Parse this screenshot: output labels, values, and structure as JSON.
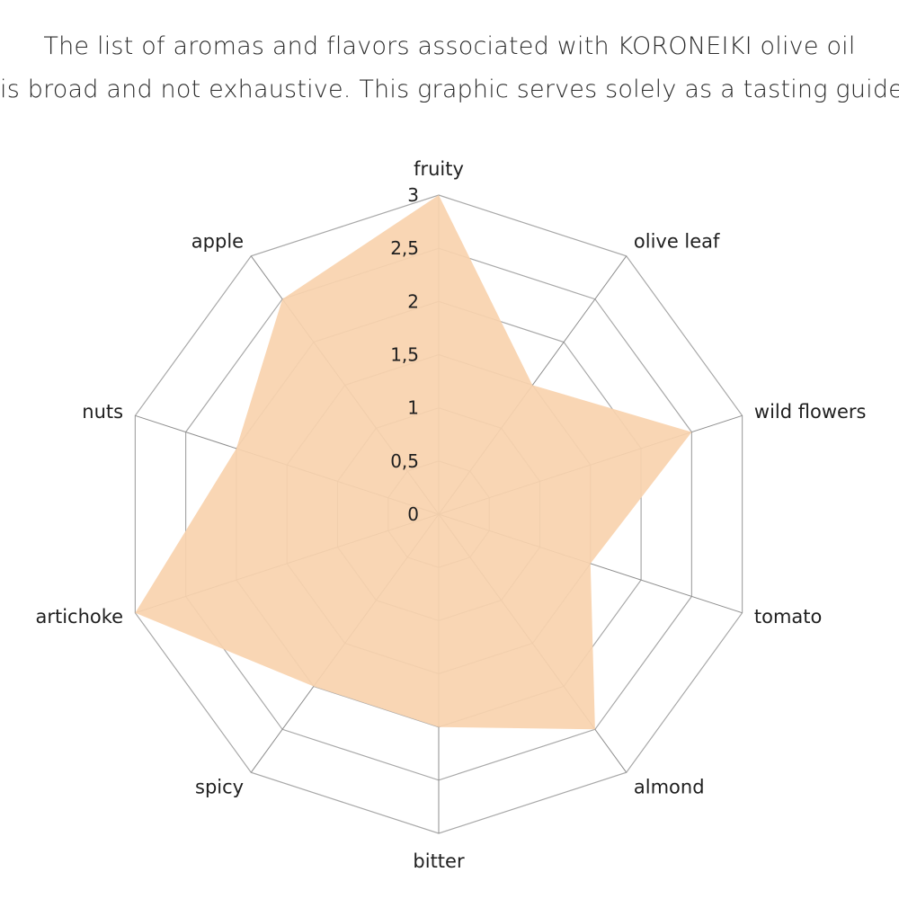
{
  "title_lines": [
    "The list of aromas and flavors associated with KORONEIKI olive oil",
    "is broad and not exhaustive. This graphic serves solely as a tasting guide."
  ],
  "chart_data": {
    "type": "radar",
    "categories": [
      "fruity",
      "olive leaf",
      "wild flowers",
      "tomato",
      "almond",
      "bitter",
      "spicy",
      "artichoke",
      "nuts",
      "apple"
    ],
    "series": [
      {
        "values": [
          3,
          1.5,
          2.5,
          1.5,
          2.5,
          2,
          2,
          3,
          2,
          2.5
        ],
        "color": "#f9d3ae"
      }
    ],
    "rlim": [
      0,
      3
    ],
    "ticks": [
      "0",
      "0,5",
      "1",
      "1,5",
      "2",
      "2,5",
      "3"
    ],
    "tick_values": [
      0,
      0.5,
      1,
      1.5,
      2,
      2.5,
      3
    ],
    "grid": true,
    "grid_color": "#a8a8a8",
    "text_color": "#1f1f1f"
  }
}
